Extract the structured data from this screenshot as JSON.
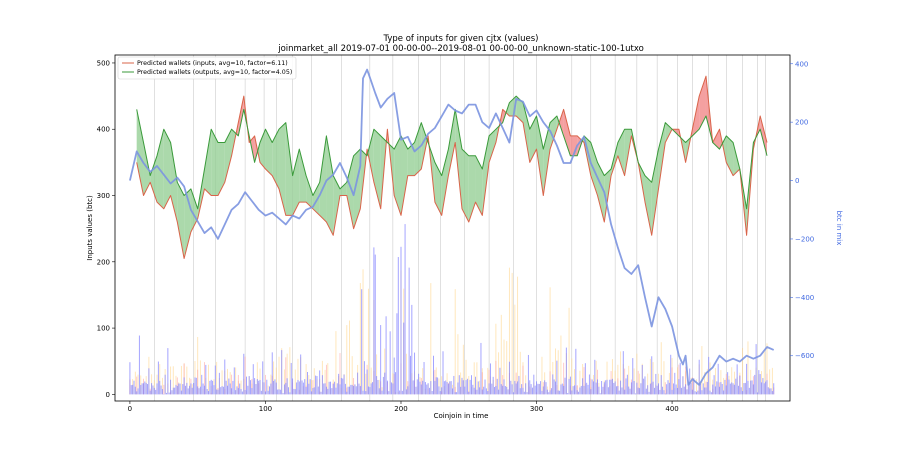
{
  "chart_data": {
    "type": "line",
    "title": "Type of inputs for given cjtx (values)",
    "subtitle": "joinmarket_all 2019-07-01 00-00-00--2019-08-01 00-00-00_unknown-static-100-1utxo",
    "xlabel": "Coinjoin in time",
    "ylabel": "Inputs values (btc)",
    "ylabel_right": "btc in mix",
    "xlim": [
      -11,
      487
    ],
    "ylim": [
      -10,
      512
    ],
    "ylim_right": [
      -755,
      430
    ],
    "x_ticks": [
      0,
      100,
      200,
      300,
      400
    ],
    "y_ticks": [
      0,
      100,
      200,
      300,
      400,
      500
    ],
    "y_ticks_right": [
      400,
      200,
      0,
      -200,
      -400,
      -600
    ],
    "y_tick_labels_right": [
      "400",
      "200",
      "0",
      "−200",
      "−400",
      "−600"
    ],
    "legend_position": "upper left",
    "colors": {
      "inputs_line": "#d9644a",
      "inputs_fill": "#f08080",
      "outputs_line": "#3a9a3a",
      "outputs_fill": "#8fcc8f",
      "mix": "#7b93e0",
      "bars_blue": "#8080ff",
      "bars_orange": "#ffd27f",
      "bars_red": "#ff9a9a",
      "vlines": "#cccccc"
    },
    "series": [
      {
        "name": "Predicted wallets (inputs, avg=10, factor=6.11)",
        "axis": "left",
        "x": [
          5,
          10,
          15,
          20,
          25,
          30,
          35,
          40,
          45,
          50,
          55,
          60,
          65,
          70,
          75,
          80,
          84,
          88,
          92,
          96,
          100,
          105,
          110,
          115,
          120,
          125,
          130,
          135,
          140,
          145,
          150,
          155,
          160,
          165,
          170,
          175,
          180,
          185,
          190,
          195,
          200,
          205,
          210,
          215,
          220,
          225,
          230,
          235,
          240,
          245,
          250,
          255,
          260,
          265,
          270,
          275,
          280,
          285,
          290,
          295,
          300,
          305,
          310,
          315,
          320,
          325,
          330,
          335,
          340,
          345,
          350,
          355,
          360,
          365,
          370,
          375,
          380,
          385,
          390,
          395,
          400,
          405,
          410,
          415,
          420,
          425,
          430,
          435,
          440,
          445,
          450,
          455,
          460,
          465,
          470
        ],
        "values": [
          350,
          300,
          320,
          290,
          280,
          300,
          260,
          205,
          245,
          265,
          310,
          300,
          300,
          320,
          360,
          410,
          450,
          380,
          390,
          350,
          340,
          330,
          310,
          270,
          270,
          290,
          290,
          280,
          270,
          260,
          240,
          300,
          300,
          250,
          280,
          370,
          320,
          280,
          400,
          300,
          270,
          330,
          330,
          340,
          390,
          290,
          270,
          330,
          380,
          280,
          260,
          290,
          270,
          350,
          380,
          430,
          420,
          420,
          410,
          350,
          370,
          300,
          370,
          400,
          430,
          390,
          390,
          380,
          330,
          300,
          260,
          330,
          360,
          330,
          390,
          350,
          290,
          240,
          310,
          380,
          400,
          400,
          350,
          400,
          450,
          480,
          380,
          400,
          350,
          330,
          340,
          240,
          370,
          420,
          380
        ]
      },
      {
        "name": "Predicted wallets (outputs, avg=10, factor=4.05)",
        "axis": "left",
        "x": [
          5,
          10,
          15,
          20,
          25,
          30,
          35,
          40,
          45,
          50,
          55,
          60,
          65,
          70,
          75,
          80,
          84,
          88,
          92,
          96,
          100,
          105,
          110,
          115,
          120,
          125,
          130,
          135,
          140,
          145,
          150,
          155,
          160,
          165,
          170,
          175,
          180,
          185,
          190,
          195,
          200,
          205,
          210,
          215,
          220,
          225,
          230,
          235,
          240,
          245,
          250,
          255,
          260,
          265,
          270,
          275,
          280,
          285,
          290,
          295,
          300,
          305,
          310,
          315,
          320,
          325,
          330,
          335,
          340,
          345,
          350,
          355,
          360,
          365,
          370,
          375,
          380,
          385,
          390,
          395,
          400,
          405,
          410,
          415,
          420,
          425,
          430,
          435,
          440,
          445,
          450,
          455,
          460,
          465,
          470
        ],
        "values": [
          430,
          380,
          330,
          360,
          400,
          380,
          320,
          300,
          310,
          280,
          340,
          400,
          380,
          380,
          400,
          390,
          430,
          390,
          350,
          380,
          400,
          380,
          400,
          410,
          330,
          370,
          330,
          300,
          320,
          390,
          330,
          310,
          320,
          360,
          370,
          360,
          400,
          390,
          380,
          370,
          390,
          370,
          380,
          410,
          380,
          350,
          330,
          370,
          430,
          370,
          360,
          360,
          340,
          390,
          400,
          410,
          440,
          450,
          440,
          400,
          420,
          370,
          410,
          420,
          390,
          360,
          360,
          390,
          380,
          350,
          330,
          340,
          380,
          400,
          400,
          350,
          330,
          320,
          370,
          410,
          400,
          390,
          380,
          390,
          400,
          420,
          380,
          370,
          390,
          380,
          340,
          280,
          380,
          400,
          360
        ]
      },
      {
        "name": "btc in mix",
        "axis": "right",
        "x": [
          0,
          5,
          10,
          15,
          20,
          25,
          30,
          35,
          40,
          45,
          50,
          55,
          60,
          65,
          70,
          75,
          80,
          85,
          90,
          95,
          100,
          105,
          110,
          115,
          120,
          125,
          130,
          135,
          140,
          145,
          150,
          155,
          160,
          165,
          170,
          172,
          175,
          178,
          181,
          185,
          190,
          195,
          200,
          205,
          210,
          215,
          220,
          225,
          230,
          235,
          240,
          245,
          250,
          255,
          260,
          265,
          270,
          275,
          280,
          285,
          290,
          295,
          300,
          305,
          310,
          315,
          320,
          325,
          330,
          335,
          340,
          345,
          350,
          355,
          360,
          365,
          370,
          375,
          380,
          385,
          390,
          395,
          400,
          405,
          408,
          410,
          412,
          415,
          420,
          425,
          430,
          435,
          440,
          445,
          450,
          455,
          460,
          465,
          470,
          475
        ],
        "values": [
          0,
          100,
          60,
          30,
          50,
          20,
          -10,
          10,
          -20,
          -100,
          -140,
          -180,
          -160,
          -200,
          -150,
          -100,
          -80,
          -40,
          -70,
          -100,
          -120,
          -110,
          -130,
          -150,
          -120,
          -130,
          -100,
          -90,
          -50,
          0,
          20,
          60,
          10,
          -50,
          50,
          350,
          380,
          340,
          300,
          250,
          280,
          300,
          140,
          150,
          100,
          120,
          160,
          180,
          220,
          260,
          240,
          230,
          260,
          260,
          200,
          180,
          230,
          180,
          130,
          280,
          270,
          220,
          240,
          200,
          170,
          120,
          60,
          60,
          120,
          150,
          60,
          10,
          -40,
          -150,
          -230,
          -300,
          -320,
          -290,
          -400,
          -500,
          -400,
          -440,
          -500,
          -600,
          -630,
          -600,
          -700,
          -680,
          -700,
          -660,
          -640,
          -600,
          -620,
          -610,
          -620,
          -600,
          -610,
          -600,
          -570,
          -580
        ]
      }
    ],
    "bars": {
      "blue": {
        "step": 1,
        "base": 20,
        "amp": 20,
        "spike_every": 7,
        "spike_amp": 60
      },
      "orange": {
        "step": 2,
        "base": 40,
        "amp": 60
      },
      "red": {
        "step": 5,
        "base": 20,
        "amp": 60
      }
    },
    "vlines_x": [
      18,
      47,
      63,
      85,
      99,
      108,
      120,
      134,
      156,
      177,
      194,
      213,
      229,
      247,
      265,
      283,
      300,
      326,
      340,
      358,
      374,
      389,
      404,
      415,
      427,
      440,
      452,
      463,
      469
    ]
  }
}
